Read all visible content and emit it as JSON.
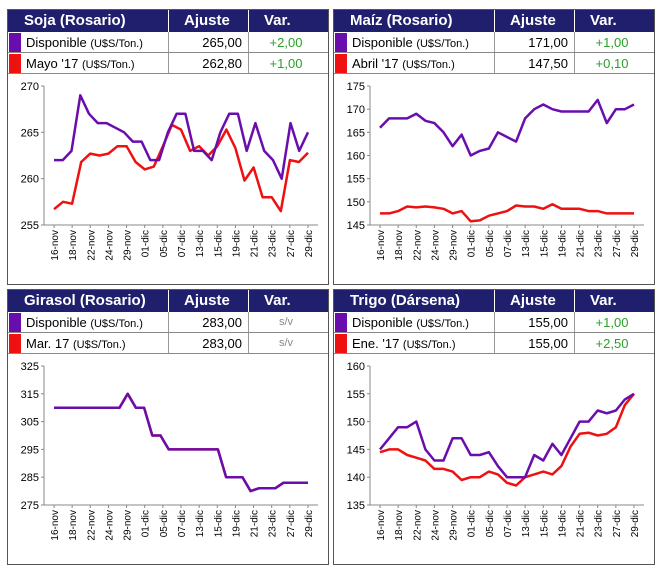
{
  "colors": {
    "header_bg": "#1f1f6e",
    "purple": "#6a0dad",
    "red": "#ee1111",
    "green": "#2aa02a"
  },
  "headers": {
    "ajuste": "Ajuste",
    "var": "Var."
  },
  "x_ticks": [
    "16-nov",
    "18-nov",
    "22-nov",
    "24-nov",
    "29-nov",
    "01-dic",
    "05-dic",
    "07-dic",
    "13-dic",
    "15-dic",
    "19-dic",
    "21-dic",
    "23-dic",
    "27-dic",
    "29-dic"
  ],
  "chart_data": [
    {
      "type": "line",
      "title": "Soja (Rosario)",
      "ylim": [
        255,
        270
      ],
      "yticks": [
        255,
        260,
        265,
        270
      ],
      "rows": [
        {
          "label": "Disponible",
          "unit": "(U$S/Ton.)",
          "ajuste": "265,00",
          "var": "+2,00"
        },
        {
          "label": "Mayo '17",
          "unit": "(U$S/Ton.)",
          "ajuste": "262,80",
          "var": "+1,00"
        }
      ],
      "series": [
        {
          "values": [
            262,
            262,
            263,
            269,
            267,
            266,
            266,
            265.5,
            265,
            264,
            264,
            262,
            262,
            265,
            267,
            267,
            263,
            263,
            262,
            265,
            267,
            267,
            263,
            266,
            263,
            262,
            260,
            266,
            263,
            265
          ]
        },
        {
          "values": [
            256.7,
            257.5,
            257.3,
            261.8,
            262.7,
            262.5,
            262.7,
            263.5,
            263.5,
            261.8,
            261,
            261.3,
            263.5,
            265.8,
            265.3,
            263,
            263.5,
            262.5,
            263.5,
            265.3,
            263.3,
            259.8,
            261.2,
            258,
            258,
            256.5,
            262,
            261.8,
            262.8
          ]
        }
      ]
    },
    {
      "type": "line",
      "title": "Maíz (Rosario)",
      "ylim": [
        145,
        175
      ],
      "yticks": [
        145,
        150,
        155,
        160,
        165,
        170,
        175
      ],
      "rows": [
        {
          "label": "Disponible",
          "unit": "(U$S/Ton.)",
          "ajuste": "171,00",
          "var": "+1,00"
        },
        {
          "label": "Abril '17",
          "unit": "(U$S/Ton.)",
          "ajuste": "147,50",
          "var": "+0,10"
        }
      ],
      "series": [
        {
          "values": [
            166,
            168,
            168,
            168,
            169,
            167.5,
            167,
            165,
            162,
            164.5,
            160,
            161,
            161.5,
            165,
            164,
            163,
            168,
            170,
            171,
            170,
            169.5,
            169.5,
            169.5,
            169.5,
            172,
            167,
            170,
            170,
            171
          ]
        },
        {
          "values": [
            147.5,
            147.5,
            148,
            149,
            148.8,
            149,
            148.8,
            148.5,
            147.5,
            148,
            145.8,
            146,
            147,
            147.5,
            148,
            149.2,
            149,
            149,
            148.5,
            149.5,
            148.5,
            148.5,
            148.5,
            148,
            148,
            147.5,
            147.5,
            147.5,
            147.5
          ]
        }
      ]
    },
    {
      "type": "line",
      "title": "Girasol (Rosario)",
      "ylim": [
        275,
        325
      ],
      "yticks": [
        275,
        285,
        295,
        305,
        315,
        325
      ],
      "rows": [
        {
          "label": "Disponible",
          "unit": "(U$S/Ton.)",
          "ajuste": "283,00",
          "var": "s/v"
        },
        {
          "label": "Mar. 17",
          "unit": "(U$S/Ton.)",
          "ajuste": "283,00",
          "var": "s/v"
        }
      ],
      "series": [
        {
          "values": [
            310,
            310,
            310,
            310,
            310,
            310,
            310,
            310,
            310,
            315,
            310,
            310,
            300,
            300,
            295,
            295,
            295,
            295,
            295,
            295,
            295,
            285,
            285,
            285,
            280,
            281,
            281,
            281,
            283,
            283,
            283,
            283
          ]
        },
        {
          "values": [
            310,
            310,
            310,
            310,
            310,
            310,
            310,
            310,
            310,
            315,
            310,
            310,
            300,
            300,
            295,
            295,
            295,
            295,
            295,
            295,
            295,
            285,
            285,
            285,
            280,
            281,
            281,
            281,
            283,
            283,
            283,
            283
          ]
        }
      ]
    },
    {
      "type": "line",
      "title": "Trigo (Dársena)",
      "ylim": [
        135,
        160
      ],
      "yticks": [
        135,
        140,
        145,
        150,
        155,
        160
      ],
      "rows": [
        {
          "label": "Disponible",
          "unit": "(U$S/Ton.)",
          "ajuste": "155,00",
          "var": "+1,00"
        },
        {
          "label": "Ene. '17",
          "unit": "(U$S/Ton.)",
          "ajuste": "155,00",
          "var": "+2,50"
        }
      ],
      "series": [
        {
          "values": [
            145,
            147,
            149,
            149,
            150,
            145,
            143,
            143,
            147,
            147,
            144,
            144,
            144.5,
            142,
            140,
            140,
            140,
            144,
            143,
            146,
            144,
            147,
            150,
            150,
            152,
            151.5,
            152,
            154,
            155
          ]
        },
        {
          "values": [
            144.5,
            145,
            145,
            144,
            143.5,
            143,
            141.5,
            141.5,
            141,
            139.5,
            140,
            140,
            141,
            140.5,
            139,
            138.5,
            140,
            140.5,
            141,
            140.5,
            142,
            145.5,
            147.8,
            148,
            147.5,
            147.8,
            149,
            153,
            155
          ]
        }
      ]
    }
  ]
}
